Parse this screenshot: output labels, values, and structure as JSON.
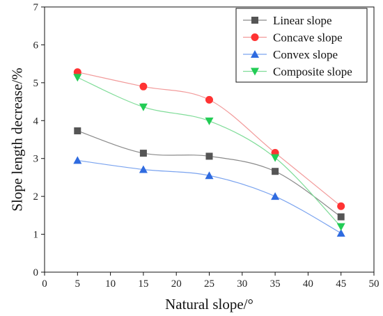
{
  "chart_data": {
    "type": "line",
    "xlabel": "Natural slope/°",
    "ylabel": "Slope length decrease/%",
    "xlim": [
      0,
      50
    ],
    "ylim": [
      0,
      7
    ],
    "xticks": [
      0,
      5,
      10,
      15,
      20,
      25,
      30,
      35,
      40,
      45,
      50
    ],
    "yticks": [
      0,
      1,
      2,
      3,
      4,
      5,
      6,
      7
    ],
    "grid": false,
    "legend_position": "top-right",
    "x": [
      5,
      15,
      25,
      35,
      45
    ],
    "series": [
      {
        "name": "Linear slope",
        "values": [
          3.73,
          3.14,
          3.06,
          2.66,
          1.46
        ],
        "color": "#555555",
        "line_color": "#8a8a8a",
        "marker": "square"
      },
      {
        "name": "Concave slope",
        "values": [
          5.28,
          4.9,
          4.55,
          3.15,
          1.74
        ],
        "color": "#ff3333",
        "line_color": "#f29a9a",
        "marker": "circle"
      },
      {
        "name": "Convex slope",
        "values": [
          2.95,
          2.71,
          2.55,
          2.0,
          1.03
        ],
        "color": "#2f6be0",
        "line_color": "#7aa3ef",
        "marker": "triangle-up"
      },
      {
        "name": "Composite slope",
        "values": [
          5.14,
          4.36,
          3.99,
          3.02,
          1.2
        ],
        "color": "#22cc55",
        "line_color": "#7fdc98",
        "marker": "triangle-down"
      }
    ]
  }
}
